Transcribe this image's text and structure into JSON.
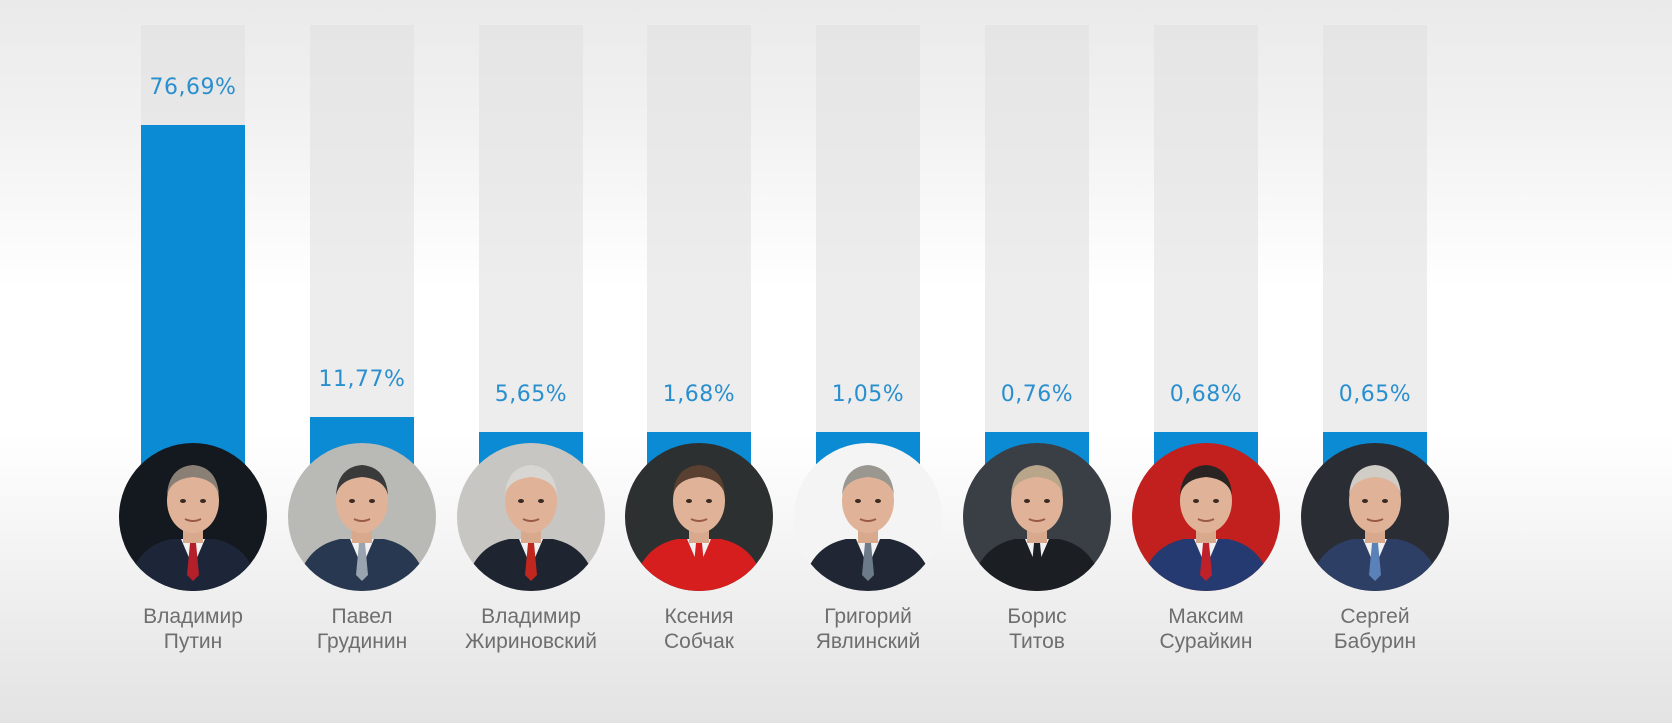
{
  "chart_data": {
    "type": "bar",
    "title": "",
    "xlabel": "",
    "ylabel": "",
    "ylim": [
      0,
      100
    ],
    "unit": "%",
    "categories": [
      "Владимир Путин",
      "Павел Грудинин",
      "Владимир Жириновский",
      "Ксения Собчак",
      "Григорий Явлинский",
      "Борис Титов",
      "Максим Сурайкин",
      "Сергей Бабурин"
    ],
    "values": [
      76.69,
      11.77,
      5.65,
      1.68,
      1.05,
      0.76,
      0.68,
      0.65
    ],
    "labels": [
      "76,69%",
      "11,77%",
      "5,65%",
      "1,68%",
      "1,05%",
      "0,76%",
      "0,68%",
      "0,65%"
    ],
    "candidates": [
      {
        "first": "Владимир",
        "last": "Путин",
        "photo_bg": "#14181f",
        "suit": "#1c2638",
        "tie": "#b3202a",
        "hair": "#8a7f74"
      },
      {
        "first": "Павел",
        "last": "Грудинин",
        "photo_bg": "#b9b9b6",
        "suit": "#283850",
        "tie": "#9aa4b0",
        "hair": "#3b3a3a"
      },
      {
        "first": "Владимир",
        "last": "Жириновский",
        "photo_bg": "#c8c6c3",
        "suit": "#1e2430",
        "tie": "#c0281f",
        "hair": "#d8d6d2"
      },
      {
        "first": "Ксения",
        "last": "Собчак",
        "photo_bg": "#2d3030",
        "suit": "#d61e1e",
        "tie": "#d61e1e",
        "hair": "#5a4030"
      },
      {
        "first": "Григорий",
        "last": "Явлинский",
        "photo_bg": "#f4f4f4",
        "suit": "#202633",
        "tie": "#6d7a8a",
        "hair": "#9a9690"
      },
      {
        "first": "Борис",
        "last": "Титов",
        "photo_bg": "#3a3f45",
        "suit": "#1b1e22",
        "tie": "#1b1e22",
        "hair": "#b8a58a"
      },
      {
        "first": "Максим",
        "last": "Сурайкин",
        "photo_bg": "#c2201e",
        "suit": "#253a70",
        "tie": "#c0202a",
        "hair": "#2a2422"
      },
      {
        "first": "Сергей",
        "last": "Бабурин",
        "photo_bg": "#2a2d33",
        "suit": "#2e3f66",
        "tie": "#5b82b8",
        "hair": "#d0ccc6"
      }
    ],
    "colors": {
      "bar": "#0a8bd3",
      "label": "#2a8fcf",
      "name": "#6e6e6e"
    }
  }
}
